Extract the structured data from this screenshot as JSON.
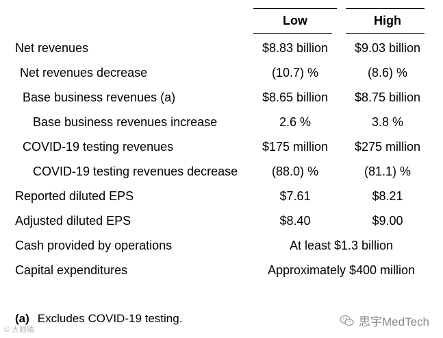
{
  "table": {
    "header": {
      "low": "Low",
      "high": "High"
    },
    "rows": [
      {
        "label": "Net revenues",
        "low": "$8.83 billion",
        "high": "$9.03 billion"
      },
      {
        "label": "Net revenues decrease",
        "low": "(10.7) %",
        "high": "(8.6) %"
      },
      {
        "label": "Base business revenues (a)",
        "low": "$8.65 billion",
        "high": "$8.75 billion"
      },
      {
        "label": "Base business revenues increase",
        "low": "2.6 %",
        "high": "3.8 %"
      },
      {
        "label": "COVID-19 testing revenues",
        "low": "$175 million",
        "high": "$275 million"
      },
      {
        "label": "COVID-19 testing revenues decrease",
        "low": "(88.0) %",
        "high": "(81.1) %"
      },
      {
        "label": "Reported diluted EPS",
        "low": "$7.61",
        "high": "$8.21"
      },
      {
        "label": "Adjusted diluted EPS",
        "low": "$8.40",
        "high": "$9.00"
      },
      {
        "label": "Cash provided by operations",
        "span": "At least $1.3 billion"
      },
      {
        "label": "Capital expenditures",
        "span": "Approximately $400 million"
      }
    ]
  },
  "footnote": {
    "mark": "(a)",
    "text": "Excludes COVID-19 testing."
  },
  "watermark": {
    "left": "© 大眼睛",
    "right": "思宇MedTech",
    "icon": "wechat-icon"
  }
}
